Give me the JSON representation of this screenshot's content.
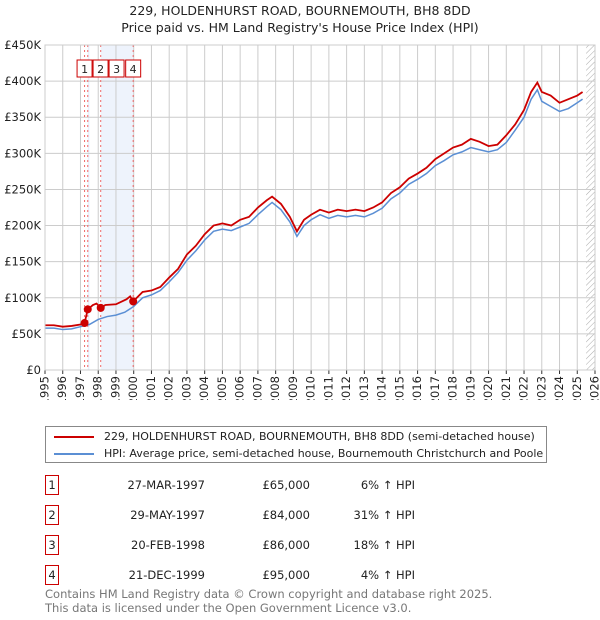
{
  "chart_data": {
    "type": "line",
    "title": "229, HOLDENHURST ROAD, BOURNEMOUTH, BH8 8DD",
    "subtitle": "Price paid vs. HM Land Registry's House Price Index (HPI)",
    "xlim": [
      1995,
      2026
    ],
    "ylim": [
      0,
      450000
    ],
    "xticks": [
      "1995",
      "1996",
      "1997",
      "1998",
      "1999",
      "2000",
      "2001",
      "2002",
      "2003",
      "2004",
      "2005",
      "2006",
      "2007",
      "2008",
      "2009",
      "2010",
      "2011",
      "2012",
      "2013",
      "2014",
      "2015",
      "2016",
      "2017",
      "2018",
      "2019",
      "2020",
      "2021",
      "2022",
      "2023",
      "2024",
      "2025",
      "2026"
    ],
    "yticks": [
      {
        "v": 0,
        "label": "£0"
      },
      {
        "v": 50000,
        "label": "£50K"
      },
      {
        "v": 100000,
        "label": "£100K"
      },
      {
        "v": 150000,
        "label": "£150K"
      },
      {
        "v": 200000,
        "label": "£200K"
      },
      {
        "v": 250000,
        "label": "£250K"
      },
      {
        "v": 300000,
        "label": "£300K"
      },
      {
        "v": 350000,
        "label": "£350K"
      },
      {
        "v": 400000,
        "label": "£400K"
      },
      {
        "v": 450000,
        "label": "£450K"
      }
    ],
    "grid": true,
    "series": [
      {
        "name": "229, HOLDENHURST ROAD, BOURNEMOUTH, BH8 8DD (semi-detached house)",
        "color": "#cc0000",
        "x": [
          1995,
          1995.5,
          1996,
          1996.5,
          1997,
          1997.23,
          1997.41,
          1997.7,
          1997.9,
          1998.14,
          1998.4,
          1999,
          1999.6,
          1999.8,
          1999.97,
          2000.5,
          2001,
          2001.5,
          2002,
          2002.5,
          2003,
          2003.5,
          2004,
          2004.5,
          2005,
          2005.5,
          2006,
          2006.5,
          2007,
          2007.5,
          2007.8,
          2008.3,
          2008.8,
          2009.2,
          2009.6,
          2010,
          2010.5,
          2011,
          2011.5,
          2012,
          2012.5,
          2013,
          2013.5,
          2014,
          2014.5,
          2015,
          2015.5,
          2016,
          2016.5,
          2017,
          2017.5,
          2018,
          2018.5,
          2019,
          2019.5,
          2020,
          2020.5,
          2021,
          2021.5,
          2022,
          2022.4,
          2022.75,
          2023,
          2023.5,
          2024,
          2024.5,
          2025,
          2025.3
        ],
        "y": [
          62000,
          62000,
          60000,
          61000,
          63000,
          65000,
          84000,
          90000,
          92000,
          86000,
          90000,
          91000,
          98000,
          102000,
          95000,
          108000,
          110000,
          115000,
          128000,
          140000,
          160000,
          172000,
          188000,
          200000,
          203000,
          200000,
          208000,
          212000,
          225000,
          235000,
          240000,
          230000,
          212000,
          192000,
          208000,
          215000,
          222000,
          218000,
          222000,
          220000,
          222000,
          220000,
          225000,
          232000,
          245000,
          253000,
          265000,
          272000,
          280000,
          292000,
          300000,
          308000,
          312000,
          320000,
          316000,
          310000,
          312000,
          325000,
          340000,
          360000,
          385000,
          398000,
          385000,
          380000,
          370000,
          375000,
          380000,
          385000
        ]
      },
      {
        "name": "HPI: Average price, semi-detached house, Bournemouth Christchurch and Poole",
        "color": "#5b8fd4",
        "x": [
          1995,
          1995.5,
          1996,
          1996.5,
          1997,
          1997.5,
          1998,
          1998.5,
          1999,
          1999.5,
          2000,
          2000.5,
          2001,
          2001.5,
          2002,
          2002.5,
          2003,
          2003.5,
          2004,
          2004.5,
          2005,
          2005.5,
          2006,
          2006.5,
          2007,
          2007.5,
          2007.8,
          2008.3,
          2008.8,
          2009.2,
          2009.6,
          2010,
          2010.5,
          2011,
          2011.5,
          2012,
          2012.5,
          2013,
          2013.5,
          2014,
          2014.5,
          2015,
          2015.5,
          2016,
          2016.5,
          2017,
          2017.5,
          2018,
          2018.5,
          2019,
          2019.5,
          2020,
          2020.5,
          2021,
          2021.5,
          2022,
          2022.4,
          2022.75,
          2023,
          2023.5,
          2024,
          2024.5,
          2025,
          2025.3
        ],
        "y": [
          58000,
          58000,
          56000,
          57000,
          60000,
          63000,
          70000,
          74000,
          76000,
          80000,
          88000,
          100000,
          104000,
          110000,
          122000,
          135000,
          152000,
          165000,
          180000,
          192000,
          195000,
          193000,
          198000,
          203000,
          215000,
          226000,
          232000,
          222000,
          205000,
          185000,
          200000,
          208000,
          215000,
          210000,
          214000,
          212000,
          214000,
          212000,
          217000,
          224000,
          237000,
          245000,
          257000,
          264000,
          272000,
          283000,
          290000,
          298000,
          302000,
          308000,
          305000,
          302000,
          305000,
          315000,
          332000,
          350000,
          375000,
          388000,
          372000,
          365000,
          358000,
          362000,
          370000,
          375000
        ]
      }
    ],
    "sales": [
      {
        "id": "1",
        "x": 1997.23,
        "y": 65000
      },
      {
        "id": "2",
        "x": 1997.41,
        "y": 84000
      },
      {
        "id": "3",
        "x": 1998.14,
        "y": 86000
      },
      {
        "id": "4",
        "x": 1999.97,
        "y": 95000
      }
    ]
  },
  "legend": {
    "property": "229, HOLDENHURST ROAD, BOURNEMOUTH, BH8 8DD (semi-detached house)",
    "hpi": "HPI: Average price, semi-detached house, Bournemouth Christchurch and Poole"
  },
  "transactions": [
    {
      "num": "1",
      "date": "27-MAR-1997",
      "price": "£65,000",
      "hpi": "6% ↑ HPI"
    },
    {
      "num": "2",
      "date": "29-MAY-1997",
      "price": "£84,000",
      "hpi": "31% ↑ HPI"
    },
    {
      "num": "3",
      "date": "20-FEB-1998",
      "price": "£86,000",
      "hpi": "18% ↑ HPI"
    },
    {
      "num": "4",
      "date": "21-DEC-1999",
      "price": "£95,000",
      "hpi": "4% ↑ HPI"
    }
  ],
  "footer": {
    "line1": "Contains HM Land Registry data © Crown copyright and database right 2025.",
    "line2": "This data is licensed under the Open Government Licence v3.0."
  }
}
